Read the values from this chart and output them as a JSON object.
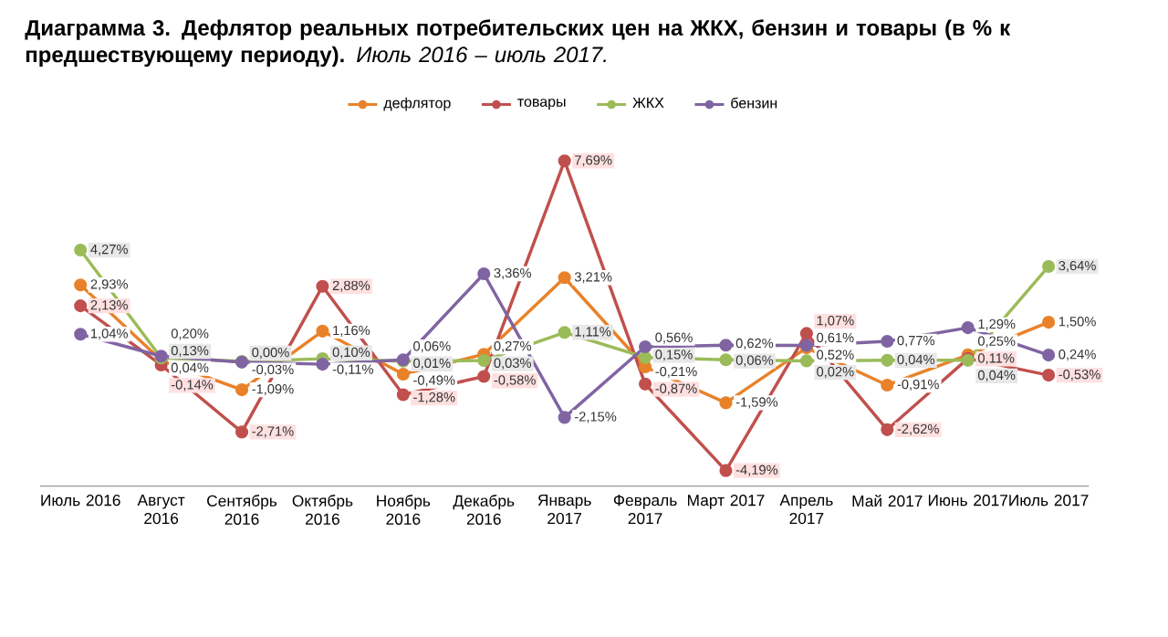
{
  "chart_data": {
    "type": "line",
    "title": "Диаграмма 3. Дефлятор реальных потребительских цен на ЖКХ, бензин и товары (в % к предшествующему периоду).",
    "subtitle": "Июль 2016 – июль 2017.",
    "categories": [
      "Июль 2016",
      "Август 2016",
      "Сентябрь 2016",
      "Октябрь 2016",
      "Ноябрь 2016",
      "Декабрь 2016",
      "Январь 2017",
      "Февраль 2017",
      "Март 2017",
      "Апрель 2017",
      "Май 2017",
      "Июнь 2017",
      "Июль 2017"
    ],
    "legend": "top",
    "marker": "circle",
    "line_style": "solid",
    "series": [
      {
        "name": "дефлятор",
        "color": "#e8822a",
        "values": [
          2.93,
          0.04,
          -1.09,
          1.16,
          -0.49,
          0.27,
          3.21,
          -0.21,
          -1.59,
          0.52,
          -0.91,
          0.25,
          1.5
        ],
        "value_labels": [
          "2,93%",
          "0,04%",
          "-1,09%",
          "1,16%",
          "-0,49%",
          "0,27%",
          "3,21%",
          "-0,21%",
          "-1,59%",
          "0,52%",
          "-0,91%",
          "0,25%",
          "1,50%"
        ]
      },
      {
        "name": "товары",
        "color": "#c0504d",
        "values": [
          2.13,
          -0.14,
          -2.71,
          2.88,
          -1.28,
          -0.58,
          7.69,
          -0.87,
          -4.19,
          1.07,
          -2.62,
          0.11,
          -0.53
        ],
        "value_labels": [
          "2,13%",
          "-0,14%",
          "-2,71%",
          "2,88%",
          "-1,28%",
          "-0,58%",
          "7,69%",
          "-0,87%",
          "-4,19%",
          "1,07%",
          "-2,62%",
          "0,11%",
          "-0,53%"
        ]
      },
      {
        "name": "ЖКХ",
        "color": "#9bbb59",
        "values": [
          4.27,
          0.13,
          0.0,
          0.1,
          0.01,
          0.03,
          1.11,
          0.15,
          0.06,
          0.02,
          0.04,
          0.04,
          3.64
        ],
        "value_labels": [
          "4,27%",
          "0,13%",
          "0,00%",
          "0,10%",
          "0,01%",
          "0,03%",
          "1,11%",
          "0,15%",
          "0,06%",
          "0,02%",
          "0,04%",
          "0,04%",
          "3,64%"
        ]
      },
      {
        "name": "бензин",
        "color": "#8064a2",
        "values": [
          1.04,
          0.2,
          -0.03,
          -0.11,
          0.06,
          3.36,
          -2.15,
          0.56,
          0.62,
          0.61,
          0.77,
          1.29,
          0.24
        ],
        "value_labels": [
          "1,04%",
          "0,20%",
          "-0,03%",
          "-0,11%",
          "0,06%",
          "3,36%",
          "-2,15%",
          "0,56%",
          "0,62%",
          "0,61%",
          "0,77%",
          "1,29%",
          "0,24%"
        ]
      }
    ]
  }
}
